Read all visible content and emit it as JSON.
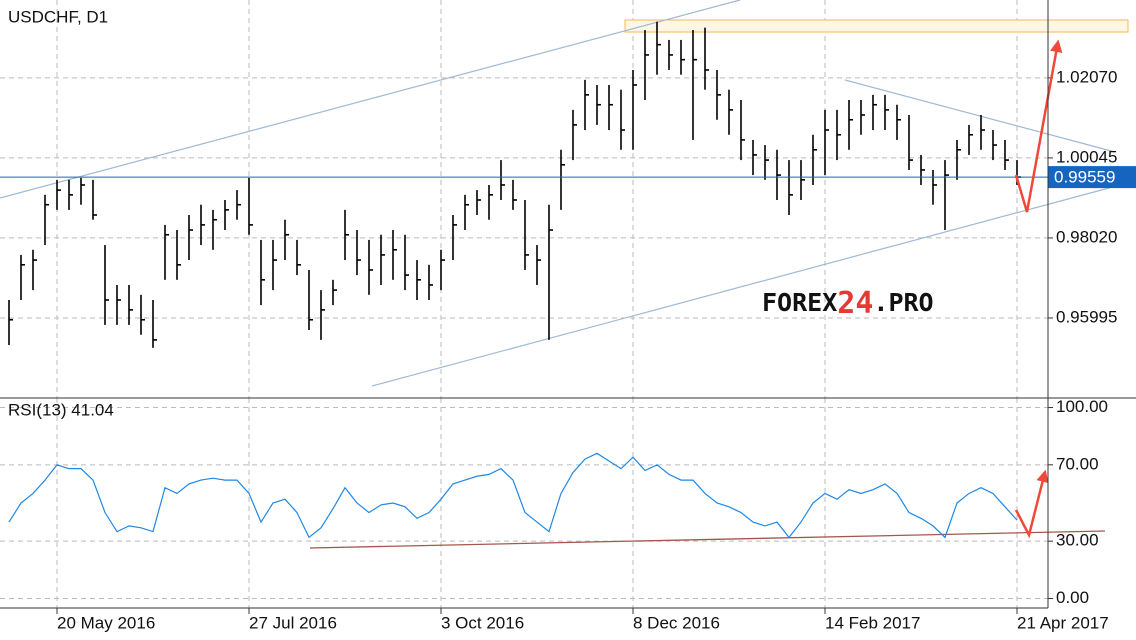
{
  "chart_data": [
    {
      "type": "ohlc",
      "title": "USDCHF, D1",
      "color": "#000000",
      "grid": true,
      "categories": [
        null,
        null,
        null,
        null,
        "20 May 2016",
        null,
        null,
        null,
        null,
        null,
        null,
        null,
        null,
        null,
        null,
        null,
        null,
        null,
        null,
        null,
        "27 Jul 2016",
        null,
        null,
        null,
        null,
        null,
        null,
        null,
        null,
        null,
        null,
        null,
        null,
        null,
        null,
        null,
        "3 Oct 2016",
        null,
        null,
        null,
        null,
        null,
        null,
        null,
        null,
        null,
        null,
        null,
        null,
        null,
        null,
        null,
        "8 Dec 2016",
        null,
        null,
        null,
        null,
        null,
        null,
        null,
        null,
        null,
        null,
        null,
        null,
        null,
        null,
        null,
        "14 Feb 2017",
        null,
        null,
        null,
        null,
        null,
        null,
        null,
        null,
        null,
        null,
        null,
        null,
        null,
        null,
        null,
        "21 Apr 2017"
      ],
      "high": [
        0.9645,
        0.9759,
        0.9772,
        0.9911,
        0.9949,
        0.9949,
        0.9954,
        0.9949,
        0.9784,
        0.9683,
        0.9683,
        0.9658,
        0.9645,
        0.9835,
        0.9822,
        0.986,
        0.9886,
        0.9873,
        0.9898,
        0.9923,
        0.9954,
        0.9797,
        0.9797,
        0.9848,
        0.9797,
        0.9721,
        0.967,
        0.9696,
        0.9873,
        0.9822,
        0.9797,
        0.981,
        0.9822,
        0.981,
        0.9746,
        0.9734,
        0.9772,
        0.986,
        0.9911,
        0.9923,
        0.9936,
        0.9999,
        0.9949,
        0.9898,
        0.9784,
        0.9886,
        1.0025,
        1.0126,
        1.0202,
        1.0189,
        1.0189,
        1.0177,
        1.0227,
        1.0328,
        1.0349,
        1.0303,
        1.0303,
        1.0328,
        1.0334,
        1.0227,
        1.0177,
        1.0151,
        1.005,
        1.0037,
        1.0025,
        0.9999,
        0.9999,
        1.0063,
        1.0126,
        1.0126,
        1.0151,
        1.0151,
        1.0164,
        1.0164,
        1.0139,
        1.0113,
        1.0012,
        0.9974,
        0.9999,
        1.005,
        1.0088,
        1.0113,
        1.0075,
        1.005,
        0.9999
      ],
      "low": [
        0.9531,
        0.9645,
        0.967,
        0.9784,
        0.9873,
        0.9873,
        0.9886,
        0.9848,
        0.9582,
        0.9582,
        0.9582,
        0.9557,
        0.9524,
        0.9696,
        0.9696,
        0.9746,
        0.9784,
        0.9772,
        0.9822,
        0.9848,
        0.981,
        0.9632,
        0.967,
        0.9746,
        0.9708,
        0.9569,
        0.9544,
        0.9632,
        0.9746,
        0.9708,
        0.9658,
        0.9683,
        0.9696,
        0.967,
        0.9645,
        0.9645,
        0.967,
        0.9746,
        0.9822,
        0.986,
        0.9848,
        0.9898,
        0.9873,
        0.9721,
        0.9683,
        0.9544,
        0.9873,
        0.9999,
        1.0075,
        1.0088,
        1.0075,
        1.0025,
        1.0025,
        1.0151,
        1.0215,
        1.0227,
        1.0215,
        1.005,
        1.0177,
        1.0101,
        1.0063,
        0.9999,
        0.9961,
        0.9949,
        0.9898,
        0.986,
        0.9898,
        0.9936,
        0.9961,
        0.9999,
        1.0025,
        1.0063,
        1.0075,
        1.0075,
        1.005,
        0.9974,
        0.9936,
        0.9886,
        0.9822,
        0.9949,
        1.0012,
        1.0025,
        0.9999,
        0.9974,
        0.9936
      ],
      "close": [
        0.9595,
        0.9734,
        0.9746,
        0.9886,
        0.9923,
        0.9911,
        0.9936,
        0.986,
        0.9645,
        0.9645,
        0.962,
        0.9595,
        0.9544,
        0.981,
        0.9734,
        0.9822,
        0.9835,
        0.9848,
        0.9873,
        0.9886,
        0.9835,
        0.9696,
        0.9746,
        0.981,
        0.9734,
        0.9595,
        0.962,
        0.967,
        0.981,
        0.9746,
        0.9721,
        0.9759,
        0.9772,
        0.9708,
        0.9696,
        0.9683,
        0.9746,
        0.9835,
        0.9886,
        0.9898,
        0.9911,
        0.9936,
        0.9898,
        0.9759,
        0.9746,
        0.9822,
        0.9987,
        1.0088,
        1.0164,
        1.0139,
        1.0139,
        1.0075,
        1.0189,
        1.0265,
        1.0291,
        1.0265,
        1.0253,
        1.0253,
        1.0227,
        1.0164,
        1.0126,
        1.005,
        1.0012,
        0.9999,
        0.9961,
        0.9911,
        0.9949,
        1.0025,
        1.0075,
        1.0063,
        1.0101,
        1.0113,
        1.0139,
        1.0126,
        1.0101,
        0.9999,
        0.9974,
        0.9936,
        0.9961,
        1.0025,
        1.0063,
        1.0075,
        1.0037,
        0.9999,
        0.9956
      ],
      "ylim": [
        0.9397,
        1.0404
      ],
      "yticks": [
        {
          "value": 1.0207,
          "label": "1.02070"
        },
        1.00045,
        {
          "value": 0.9802,
          "label": "0.98020"
        },
        0.95995
      ],
      "current_price": 0.99559,
      "current_price_color": "#1565c0",
      "watermark": [
        "FOREX",
        "24",
        ".PRO"
      ]
    },
    {
      "type": "line",
      "title": "RSI(13) 41.04",
      "color": "#1e88e5",
      "grid": true,
      "values": [
        40,
        50,
        55,
        62,
        70,
        68,
        68,
        62,
        45,
        35,
        38,
        37,
        35,
        58,
        55,
        60,
        62,
        63,
        62,
        62,
        55,
        40,
        50,
        52,
        45,
        32,
        37,
        47,
        58,
        50,
        45,
        49,
        50,
        48,
        42,
        45,
        52,
        60,
        62,
        64,
        65,
        68,
        62,
        45,
        40,
        35,
        55,
        66,
        73,
        76,
        72,
        68,
        74,
        67,
        70,
        65,
        62,
        62,
        55,
        50,
        48,
        45,
        40,
        38,
        40,
        32,
        40,
        50,
        55,
        52,
        57,
        55,
        57,
        60,
        55,
        45,
        42,
        38,
        32,
        50,
        55,
        58,
        55,
        48,
        41.04
      ],
      "ylim": [
        -5,
        105
      ],
      "yticks": [
        {
          "value": 100,
          "label": "100.00"
        },
        {
          "value": 70,
          "label": "70.00"
        },
        {
          "value": 30,
          "label": "30.00"
        },
        {
          "value": 0,
          "label": "0.00"
        }
      ]
    }
  ]
}
